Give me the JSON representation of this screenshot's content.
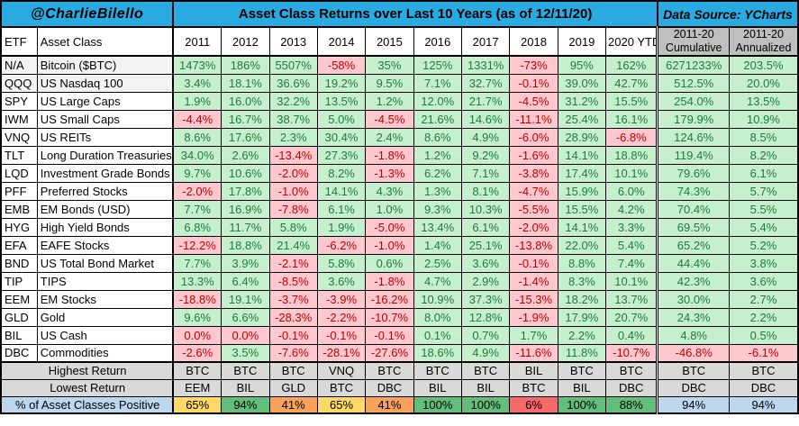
{
  "header": {
    "handle": "@CharlieBilello",
    "title": "Asset Class Returns over Last 10 Years (as of 12/11/20)",
    "source": "Data Source: YCharts"
  },
  "chart_data": {
    "type": "table",
    "title": "Asset Class Returns over Last 10 Years (as of 12/11/20)",
    "columns": [
      "ETF",
      "Asset Class",
      "2011",
      "2012",
      "2013",
      "2014",
      "2015",
      "2016",
      "2017",
      "2018",
      "2019",
      "2020 YTD",
      "2011-20\nCumulative",
      "2011-20\nAnnualized"
    ],
    "rows": [
      {
        "etf": "N/A",
        "name": "Bitcoin ($BTC)",
        "values": [
          "1473%",
          "186%",
          "5507%",
          "-58%",
          "35%",
          "125%",
          "1331%",
          "-73%",
          "95%",
          "162%",
          "6271233%",
          "203.5%"
        ]
      },
      {
        "etf": "QQQ",
        "name": "US Nasdaq 100",
        "values": [
          "3.4%",
          "18.1%",
          "36.6%",
          "19.2%",
          "9.5%",
          "7.1%",
          "32.7%",
          "-0.1%",
          "39.0%",
          "42.7%",
          "512.5%",
          "20.0%"
        ]
      },
      {
        "etf": "SPY",
        "name": "US Large Caps",
        "values": [
          "1.9%",
          "16.0%",
          "32.2%",
          "13.5%",
          "1.2%",
          "12.0%",
          "21.7%",
          "-4.5%",
          "31.2%",
          "15.5%",
          "254.0%",
          "13.5%"
        ]
      },
      {
        "etf": "IWM",
        "name": "US Small Caps",
        "values": [
          "-4.4%",
          "16.7%",
          "38.7%",
          "5.0%",
          "-4.5%",
          "21.6%",
          "14.6%",
          "-11.1%",
          "25.4%",
          "16.1%",
          "179.9%",
          "10.9%"
        ]
      },
      {
        "etf": "VNQ",
        "name": "US REITs",
        "values": [
          "8.6%",
          "17.6%",
          "2.3%",
          "30.4%",
          "2.4%",
          "8.6%",
          "4.9%",
          "-6.0%",
          "28.9%",
          "-6.8%",
          "124.6%",
          "8.5%"
        ]
      },
      {
        "etf": "TLT",
        "name": "Long Duration Treasuries",
        "values": [
          "34.0%",
          "2.6%",
          "-13.4%",
          "27.3%",
          "-1.8%",
          "1.2%",
          "9.2%",
          "-1.6%",
          "14.1%",
          "18.8%",
          "119.4%",
          "8.2%"
        ]
      },
      {
        "etf": "LQD",
        "name": "Investment Grade Bonds",
        "values": [
          "9.7%",
          "10.6%",
          "-2.0%",
          "8.2%",
          "-1.3%",
          "6.2%",
          "7.1%",
          "-3.8%",
          "17.4%",
          "10.1%",
          "79.6%",
          "6.1%"
        ]
      },
      {
        "etf": "PFF",
        "name": "Preferred Stocks",
        "values": [
          "-2.0%",
          "17.8%",
          "-1.0%",
          "14.1%",
          "4.3%",
          "1.3%",
          "8.1%",
          "-4.7%",
          "15.9%",
          "6.0%",
          "74.3%",
          "5.7%"
        ]
      },
      {
        "etf": "EMB",
        "name": "EM Bonds (USD)",
        "values": [
          "7.7%",
          "16.9%",
          "-7.8%",
          "6.1%",
          "1.0%",
          "9.3%",
          "10.3%",
          "-5.5%",
          "15.5%",
          "4.2%",
          "70.4%",
          "5.5%"
        ]
      },
      {
        "etf": "HYG",
        "name": "High Yield Bonds",
        "values": [
          "6.8%",
          "11.7%",
          "5.8%",
          "1.9%",
          "-5.0%",
          "13.4%",
          "6.1%",
          "-2.0%",
          "14.1%",
          "3.3%",
          "69.5%",
          "5.4%"
        ]
      },
      {
        "etf": "EFA",
        "name": "EAFE Stocks",
        "values": [
          "-12.2%",
          "18.8%",
          "21.4%",
          "-6.2%",
          "-1.0%",
          "1.4%",
          "25.1%",
          "-13.8%",
          "22.0%",
          "5.4%",
          "65.2%",
          "5.2%"
        ]
      },
      {
        "etf": "BND",
        "name": "US Total Bond Market",
        "values": [
          "7.7%",
          "3.9%",
          "-2.1%",
          "5.8%",
          "0.6%",
          "2.5%",
          "3.6%",
          "-0.1%",
          "8.8%",
          "7.4%",
          "44.4%",
          "3.8%"
        ]
      },
      {
        "etf": "TIP",
        "name": "TIPS",
        "values": [
          "13.3%",
          "6.4%",
          "-8.5%",
          "3.6%",
          "-1.8%",
          "4.7%",
          "2.9%",
          "-1.4%",
          "8.3%",
          "10.1%",
          "42.3%",
          "3.6%"
        ]
      },
      {
        "etf": "EEM",
        "name": "EM Stocks",
        "values": [
          "-18.8%",
          "19.1%",
          "-3.7%",
          "-3.9%",
          "-16.2%",
          "10.9%",
          "37.3%",
          "-15.3%",
          "18.2%",
          "13.7%",
          "30.0%",
          "2.7%"
        ]
      },
      {
        "etf": "GLD",
        "name": "Gold",
        "values": [
          "9.6%",
          "6.6%",
          "-28.3%",
          "-2.2%",
          "-10.7%",
          "8.0%",
          "12.8%",
          "-1.9%",
          "17.9%",
          "20.7%",
          "24.3%",
          "2.2%"
        ]
      },
      {
        "etf": "BIL",
        "name": "US Cash",
        "values": [
          "0.0%",
          "0.0%",
          "-0.1%",
          "-0.1%",
          "-0.1%",
          "0.1%",
          "0.7%",
          "1.7%",
          "2.2%",
          "0.4%",
          "4.8%",
          "0.5%"
        ]
      },
      {
        "etf": "DBC",
        "name": "Commodities",
        "values": [
          "-2.6%",
          "3.5%",
          "-7.6%",
          "-28.1%",
          "-27.6%",
          "18.6%",
          "4.9%",
          "-11.6%",
          "11.8%",
          "-10.7%",
          "-46.8%",
          "-6.1%"
        ]
      }
    ],
    "summary": {
      "highest": {
        "label": "Highest Return",
        "values": [
          "BTC",
          "BTC",
          "BTC",
          "VNQ",
          "BTC",
          "BTC",
          "BTC",
          "BIL",
          "BTC",
          "BTC",
          "BTC",
          "BTC"
        ]
      },
      "lowest": {
        "label": "Lowest Return",
        "values": [
          "EEM",
          "BIL",
          "GLD",
          "BTC",
          "DBC",
          "BIL",
          "BIL",
          "BTC",
          "BIL",
          "DBC",
          "DBC",
          "DBC"
        ]
      },
      "positive": {
        "label": "% of Asset Classes Positive",
        "values": [
          "65%",
          "94%",
          "41%",
          "65%",
          "41%",
          "100%",
          "100%",
          "6%",
          "100%",
          "88%",
          "94%",
          "94%"
        ],
        "colors": [
          "#FFD965",
          "#63BE7B",
          "#F8A25D",
          "#FFD965",
          "#F8A25D",
          "#63BE7B",
          "#63BE7B",
          "#F8696B",
          "#63BE7B",
          "#63BE7B",
          "#BDD7EE",
          "#BDD7EE"
        ]
      }
    }
  },
  "colors": {
    "accent_cyan": "#29ABE2",
    "positive_bg": "#C6EFCE",
    "positive_text": "#217A3E",
    "negative_bg": "#FFC7CE",
    "negative_text": "#C00000",
    "header_gray": "#BFBFBF",
    "summary_gray": "#D9D9D9",
    "summary_blue": "#BDD7EE",
    "alt_row_gray": "#F2F2F2",
    "scale_green": "#63BE7B",
    "scale_yellow": "#FFD965",
    "scale_orange": "#F8A25D",
    "scale_red": "#F8696B"
  }
}
